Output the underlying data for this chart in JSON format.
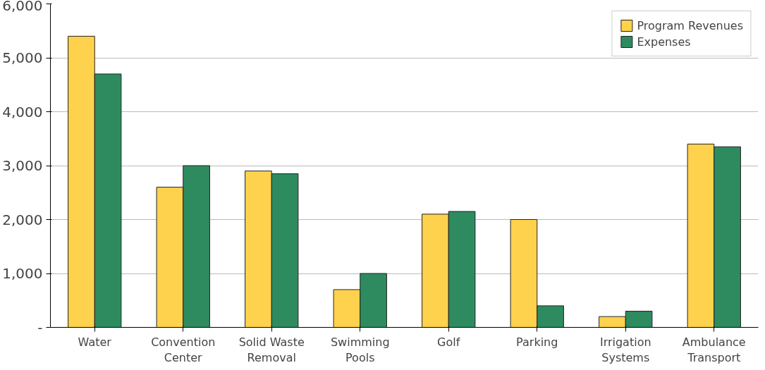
{
  "chart_data": {
    "type": "bar",
    "categories": [
      "Water",
      "Convention Center",
      "Solid Waste Removal",
      "Swimming Pools",
      "Golf",
      "Parking",
      "Irrigation Systems",
      "Ambulance Transport"
    ],
    "series": [
      {
        "name": "Program Revenues",
        "color": "#ffd24d",
        "values": [
          5400,
          2600,
          2900,
          700,
          2100,
          2000,
          200,
          3400
        ]
      },
      {
        "name": "Expenses",
        "color": "#2e8b5f",
        "values": [
          4700,
          3000,
          2850,
          1000,
          2150,
          400,
          300,
          3350
        ]
      }
    ],
    "ylim": [
      0,
      6000
    ],
    "yticks": [
      {
        "value": 0,
        "label": "-"
      },
      {
        "value": 1000,
        "label": "1,000"
      },
      {
        "value": 2000,
        "label": "2,000"
      },
      {
        "value": 3000,
        "label": "3,000"
      },
      {
        "value": 4000,
        "label": "4,000"
      },
      {
        "value": 5000,
        "label": "5,000"
      },
      {
        "value": 6000,
        "label": "6,000"
      }
    ],
    "grid": "y",
    "legend": "top right"
  }
}
